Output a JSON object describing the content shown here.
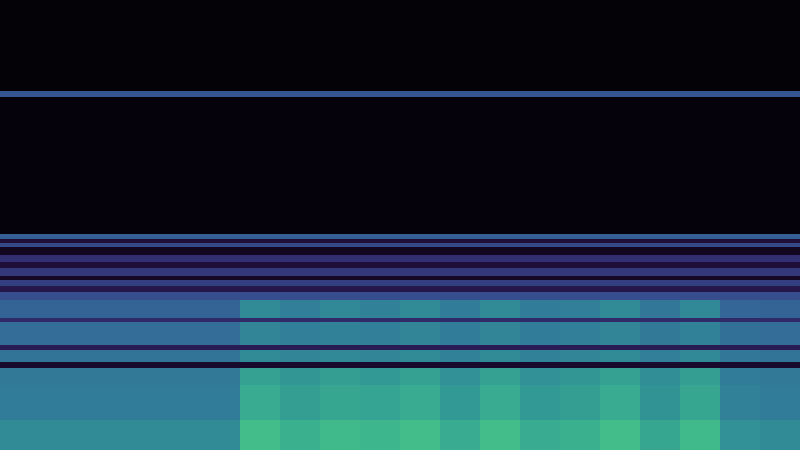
{
  "chart_data": {
    "type": "heatmap",
    "tick_labels": false,
    "xlim": [
      0,
      800
    ],
    "ylim": [
      0,
      450
    ],
    "zlim": [
      0,
      1
    ],
    "x_bins": [
      0,
      40,
      80,
      120,
      160,
      200,
      240,
      280,
      320,
      360,
      400,
      440,
      480,
      520,
      560,
      600,
      640,
      680,
      720,
      760,
      800
    ],
    "y_bins": [
      0,
      30,
      65,
      82,
      88,
      100,
      105,
      128,
      132,
      150,
      158,
      164,
      170,
      174,
      182,
      188,
      195,
      203,
      207,
      211,
      216,
      353,
      359,
      450
    ],
    "cells": [
      [
        0.6,
        0.6,
        0.6,
        0.6,
        0.6,
        0.6,
        0.8,
        0.74,
        0.78,
        0.76,
        0.8,
        0.72,
        0.8,
        0.72,
        0.74,
        0.8,
        0.7,
        0.78,
        0.62,
        0.6
      ],
      [
        0.55,
        0.55,
        0.55,
        0.55,
        0.55,
        0.55,
        0.72,
        0.67,
        0.7,
        0.69,
        0.72,
        0.65,
        0.72,
        0.65,
        0.67,
        0.72,
        0.63,
        0.7,
        0.57,
        0.55
      ],
      [
        0.54,
        0.54,
        0.54,
        0.54,
        0.54,
        0.54,
        0.68,
        0.64,
        0.67,
        0.65,
        0.68,
        0.62,
        0.68,
        0.62,
        0.64,
        0.68,
        0.61,
        0.67,
        0.55,
        0.54
      ],
      [
        0.12,
        0.12,
        0.12,
        0.12,
        0.12,
        0.12,
        0.12,
        0.12,
        0.12,
        0.12,
        0.12,
        0.12,
        0.12,
        0.12,
        0.12,
        0.12,
        0.12,
        0.12,
        0.12,
        0.12
      ],
      [
        0.52,
        0.52,
        0.52,
        0.52,
        0.52,
        0.52,
        0.6,
        0.58,
        0.59,
        0.58,
        0.6,
        0.57,
        0.6,
        0.57,
        0.58,
        0.6,
        0.56,
        0.59,
        0.53,
        0.52
      ],
      [
        0.22,
        0.22,
        0.22,
        0.22,
        0.22,
        0.22,
        0.22,
        0.22,
        0.22,
        0.22,
        0.22,
        0.22,
        0.22,
        0.22,
        0.22,
        0.22,
        0.22,
        0.22,
        0.22,
        0.22
      ],
      [
        0.5,
        0.5,
        0.5,
        0.5,
        0.5,
        0.5,
        0.58,
        0.56,
        0.57,
        0.56,
        0.58,
        0.55,
        0.58,
        0.55,
        0.56,
        0.58,
        0.54,
        0.57,
        0.51,
        0.5
      ],
      [
        0.28,
        0.28,
        0.28,
        0.28,
        0.28,
        0.28,
        0.28,
        0.28,
        0.28,
        0.28,
        0.28,
        0.28,
        0.28,
        0.28,
        0.28,
        0.28,
        0.28,
        0.28,
        0.28,
        0.28
      ],
      [
        0.47,
        0.47,
        0.47,
        0.47,
        0.47,
        0.47,
        0.6,
        0.56,
        0.59,
        0.57,
        0.6,
        0.55,
        0.6,
        0.55,
        0.56,
        0.6,
        0.53,
        0.59,
        0.48,
        0.47
      ],
      [
        0.4,
        0.4,
        0.4,
        0.4,
        0.4,
        0.4,
        0.4,
        0.4,
        0.4,
        0.4,
        0.4,
        0.4,
        0.4,
        0.4,
        0.4,
        0.4,
        0.4,
        0.4,
        0.4,
        0.4
      ],
      [
        0.2,
        0.2,
        0.2,
        0.2,
        0.2,
        0.2,
        0.2,
        0.2,
        0.2,
        0.2,
        0.2,
        0.2,
        0.2,
        0.2,
        0.2,
        0.2,
        0.2,
        0.2,
        0.2,
        0.2
      ],
      [
        0.35,
        0.35,
        0.35,
        0.35,
        0.35,
        0.35,
        0.35,
        0.35,
        0.35,
        0.35,
        0.35,
        0.35,
        0.35,
        0.35,
        0.35,
        0.35,
        0.35,
        0.35,
        0.35,
        0.35
      ],
      [
        0.1,
        0.1,
        0.1,
        0.1,
        0.1,
        0.1,
        0.1,
        0.1,
        0.1,
        0.1,
        0.1,
        0.1,
        0.1,
        0.1,
        0.1,
        0.1,
        0.1,
        0.1,
        0.1,
        0.1
      ],
      [
        0.33,
        0.33,
        0.33,
        0.33,
        0.33,
        0.33,
        0.33,
        0.33,
        0.33,
        0.33,
        0.33,
        0.33,
        0.33,
        0.33,
        0.33,
        0.33,
        0.33,
        0.33,
        0.33,
        0.33
      ],
      [
        0.15,
        0.15,
        0.15,
        0.15,
        0.15,
        0.15,
        0.15,
        0.15,
        0.15,
        0.15,
        0.15,
        0.15,
        0.15,
        0.15,
        0.15,
        0.15,
        0.15,
        0.15,
        0.15,
        0.15
      ],
      [
        0.3,
        0.3,
        0.3,
        0.3,
        0.3,
        0.3,
        0.3,
        0.3,
        0.3,
        0.3,
        0.3,
        0.3,
        0.3,
        0.3,
        0.3,
        0.3,
        0.3,
        0.3,
        0.3,
        0.3
      ],
      [
        0.08,
        0.08,
        0.08,
        0.08,
        0.08,
        0.08,
        0.08,
        0.08,
        0.08,
        0.08,
        0.08,
        0.08,
        0.08,
        0.08,
        0.08,
        0.08,
        0.08,
        0.08,
        0.08,
        0.08
      ],
      [
        0.38,
        0.38,
        0.38,
        0.38,
        0.38,
        0.38,
        0.38,
        0.38,
        0.38,
        0.38,
        0.38,
        0.38,
        0.38,
        0.38,
        0.38,
        0.38,
        0.38,
        0.38,
        0.38,
        0.38
      ],
      [
        0.15,
        0.15,
        0.15,
        0.15,
        0.15,
        0.15,
        0.15,
        0.15,
        0.15,
        0.15,
        0.15,
        0.15,
        0.15,
        0.15,
        0.15,
        0.15,
        0.15,
        0.15,
        0.15,
        0.15
      ],
      [
        0.45,
        0.45,
        0.45,
        0.45,
        0.45,
        0.45,
        0.45,
        0.45,
        0.45,
        0.45,
        0.45,
        0.45,
        0.45,
        0.45,
        0.45,
        0.45,
        0.45,
        0.45,
        0.45,
        0.45
      ],
      [
        0.03,
        0.03,
        0.03,
        0.03,
        0.03,
        0.03,
        0.03,
        0.03,
        0.03,
        0.03,
        0.03,
        0.03,
        0.03,
        0.03,
        0.03,
        0.03,
        0.03,
        0.03,
        0.03,
        0.03
      ],
      [
        0.42,
        0.42,
        0.42,
        0.42,
        0.42,
        0.42,
        0.42,
        0.42,
        0.42,
        0.42,
        0.42,
        0.42,
        0.42,
        0.42,
        0.42,
        0.42,
        0.42,
        0.42,
        0.42,
        0.42
      ],
      [
        0.02,
        0.02,
        0.02,
        0.02,
        0.02,
        0.02,
        0.02,
        0.02,
        0.02,
        0.02,
        0.02,
        0.02,
        0.02,
        0.02,
        0.02,
        0.02,
        0.02,
        0.02,
        0.02,
        0.02
      ]
    ]
  }
}
